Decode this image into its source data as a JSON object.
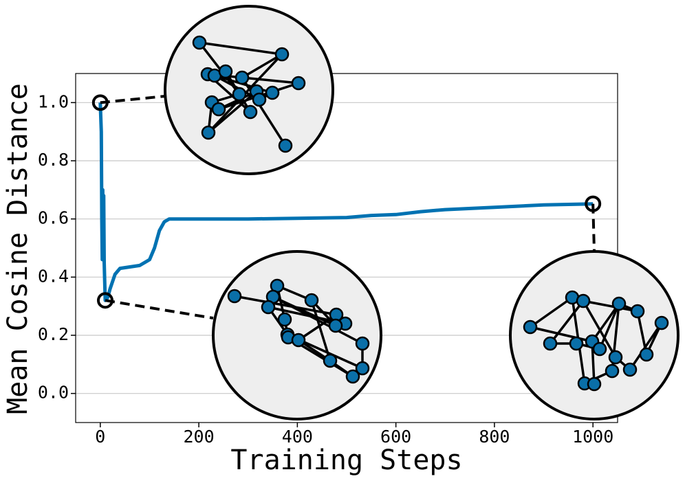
{
  "chart_data": {
    "type": "line",
    "xlabel": "Training Steps",
    "ylabel": "Mean Cosine Distance",
    "x": [
      0,
      2,
      3,
      4,
      5,
      6,
      7,
      8,
      10,
      15,
      20,
      30,
      40,
      60,
      80,
      100,
      110,
      120,
      130,
      140,
      200,
      300,
      400,
      500,
      550,
      600,
      650,
      700,
      800,
      900,
      1000
    ],
    "values": [
      1.0,
      0.9,
      0.6,
      0.46,
      0.7,
      0.5,
      0.68,
      0.45,
      0.32,
      0.33,
      0.36,
      0.41,
      0.43,
      0.435,
      0.44,
      0.46,
      0.5,
      0.56,
      0.59,
      0.6,
      0.6,
      0.6,
      0.602,
      0.605,
      0.612,
      0.615,
      0.625,
      0.632,
      0.64,
      0.648,
      0.652
    ],
    "color": "#0072b2",
    "highlight_points": {
      "x": [
        0,
        10,
        1000
      ],
      "y": [
        1.0,
        0.32,
        0.652
      ]
    },
    "xlim": [
      -50,
      1050
    ],
    "xticks": [
      0,
      200,
      400,
      600,
      800,
      1000
    ],
    "ylim": [
      -0.1,
      1.1
    ],
    "yticks": [
      {
        "value": 0,
        "label": "0.0"
      },
      0.2,
      0.4,
      0.6,
      0.8,
      {
        "value": 1,
        "label": "1.0"
      }
    ],
    "grid": true
  }
}
